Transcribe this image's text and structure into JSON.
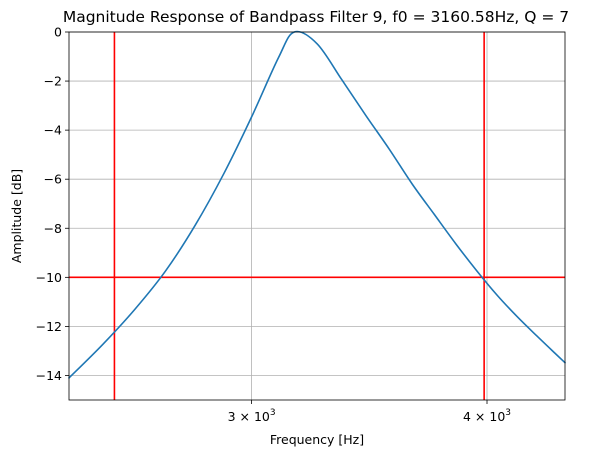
{
  "chart_data": {
    "type": "line",
    "title": "Magnitude Response of Bandpass Filter 9, f0 = 3160.58Hz, Q = 7",
    "xlabel": "Frequency [Hz]",
    "ylabel": "Amplitude [dB]",
    "xscale": "log",
    "xlim": [
      2400,
      4400
    ],
    "ylim": [
      -15,
      0
    ],
    "grid": true,
    "x_ticks": [
      {
        "value": 3000,
        "mantissa": "3",
        "base": "10",
        "exponent": "3"
      },
      {
        "value": 4000,
        "mantissa": "4",
        "base": "10",
        "exponent": "3"
      }
    ],
    "y_ticks": [
      {
        "value": 0,
        "label": "0"
      },
      {
        "value": -2,
        "label": "−2"
      },
      {
        "value": -4,
        "label": "−4"
      },
      {
        "value": -6,
        "label": "−6"
      },
      {
        "value": -8,
        "label": "−8"
      },
      {
        "value": -10,
        "label": "−10"
      },
      {
        "value": -12,
        "label": "−12"
      },
      {
        "value": -14,
        "label": "−14"
      }
    ],
    "series": [
      {
        "color": "#1f77b4",
        "x": [
          2400,
          2500,
          2600,
          2700,
          2800,
          2900,
          3000,
          3100,
          3160.58,
          3250,
          3350,
          3450,
          3550,
          3650,
          3750,
          3850,
          3950,
          4050,
          4150,
          4250,
          4350,
          4400
        ],
        "y": [
          -14.1,
          -12.75,
          -11.32,
          -9.75,
          -7.88,
          -5.77,
          -3.46,
          -1.05,
          0.0,
          -0.48,
          -1.95,
          -3.41,
          -4.78,
          -6.19,
          -7.43,
          -8.63,
          -9.73,
          -10.73,
          -11.6,
          -12.38,
          -13.12,
          -13.48
        ]
      }
    ],
    "reference_lines": [
      {
        "orientation": "vertical",
        "value": 2537,
        "color": "#ff0000"
      },
      {
        "orientation": "vertical",
        "value": 3986,
        "color": "#ff0000"
      },
      {
        "orientation": "horizontal",
        "value": -10,
        "color": "#ff0000"
      }
    ]
  }
}
